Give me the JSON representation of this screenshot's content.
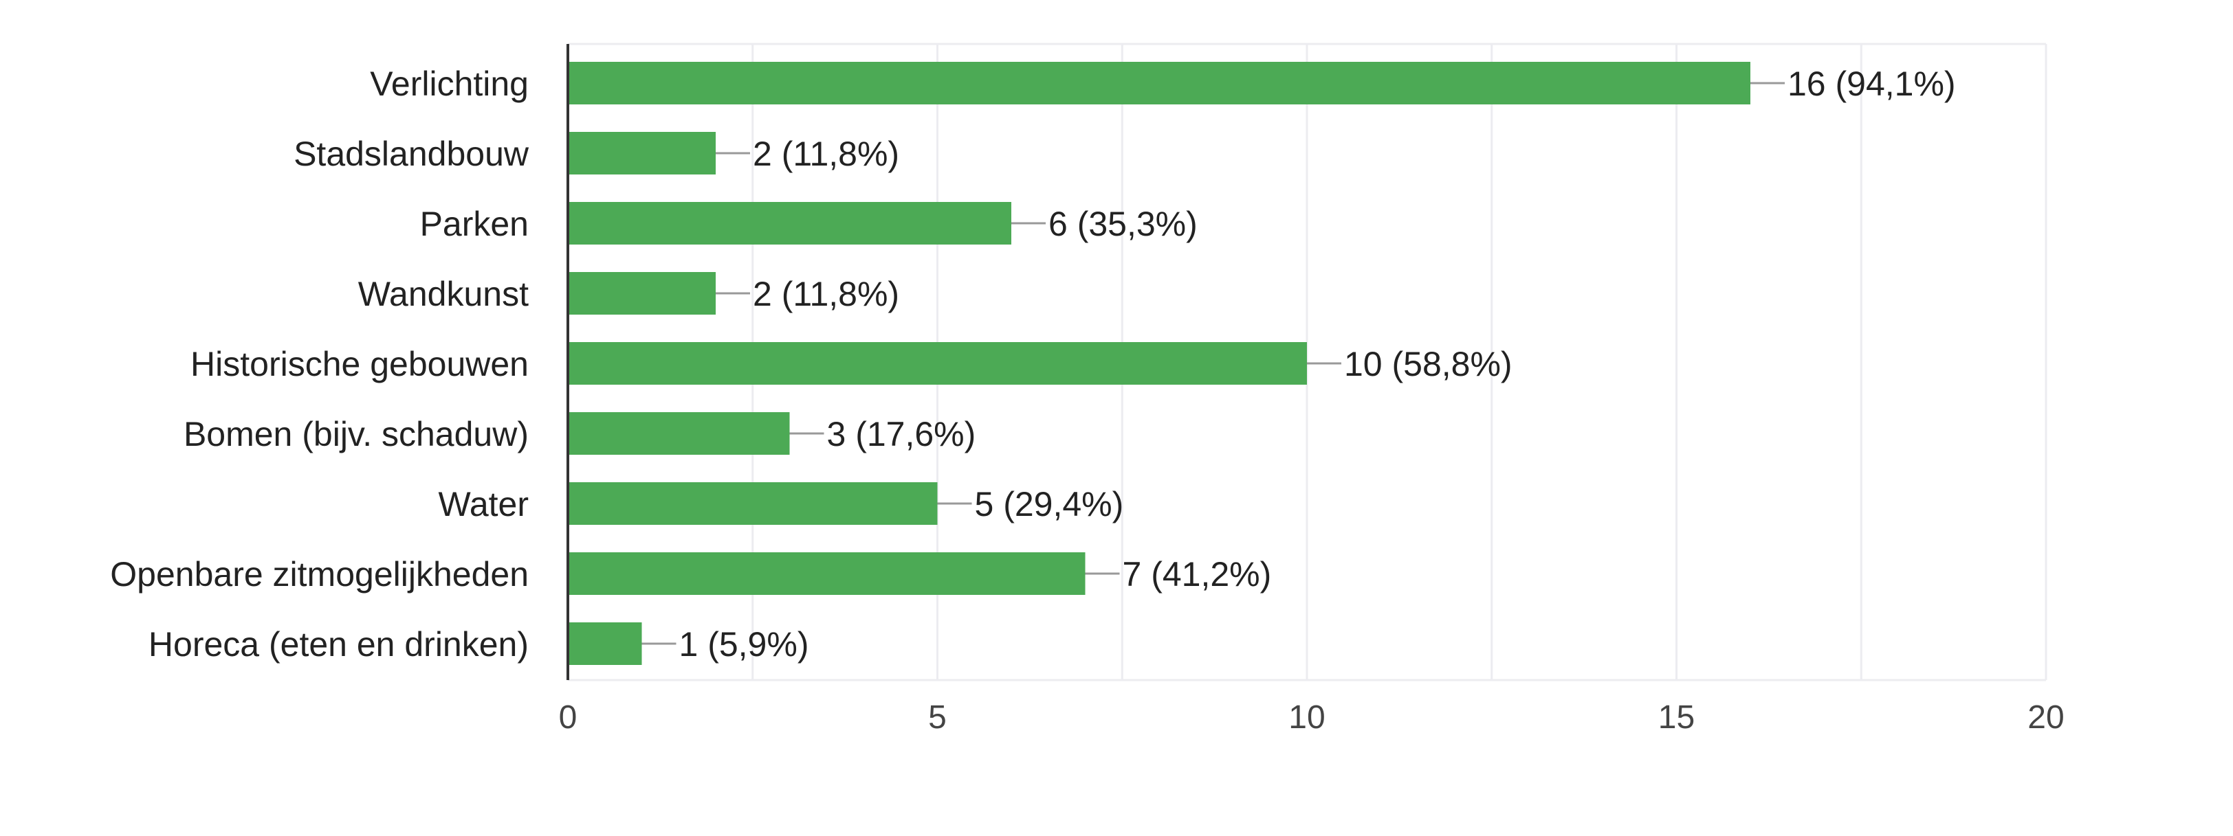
{
  "chart_data": {
    "type": "bar",
    "orientation": "horizontal",
    "categories": [
      "Verlichting",
      "Stadslandbouw",
      "Parken",
      "Wandkunst",
      "Historische gebouwen",
      "Bomen (bijv. schaduw)",
      "Water",
      "Openbare zitmogelijkheden",
      "Horeca (eten en drinken)"
    ],
    "values": [
      16,
      2,
      6,
      2,
      10,
      3,
      5,
      7,
      1
    ],
    "data_labels": [
      "16 (94,1%)",
      "2 (11,8%)",
      "6 (35,3%)",
      "2 (11,8%)",
      "10 (58,8%)",
      "3 (17,6%)",
      "5 (29,4%)",
      "7 (41,2%)",
      "1 (5,9%)"
    ],
    "xlim": [
      0,
      20
    ],
    "x_ticks": [
      0,
      5,
      10,
      15,
      20
    ],
    "x_tick_labels": [
      "0",
      "5",
      "10",
      "15",
      "20"
    ],
    "grid": true,
    "legend": "none",
    "title": "",
    "xlabel": "",
    "ylabel": "",
    "colors": {
      "bar": "#4caa55",
      "grid": "#ececf0",
      "axis": "#333333",
      "leader": "#999999"
    }
  }
}
